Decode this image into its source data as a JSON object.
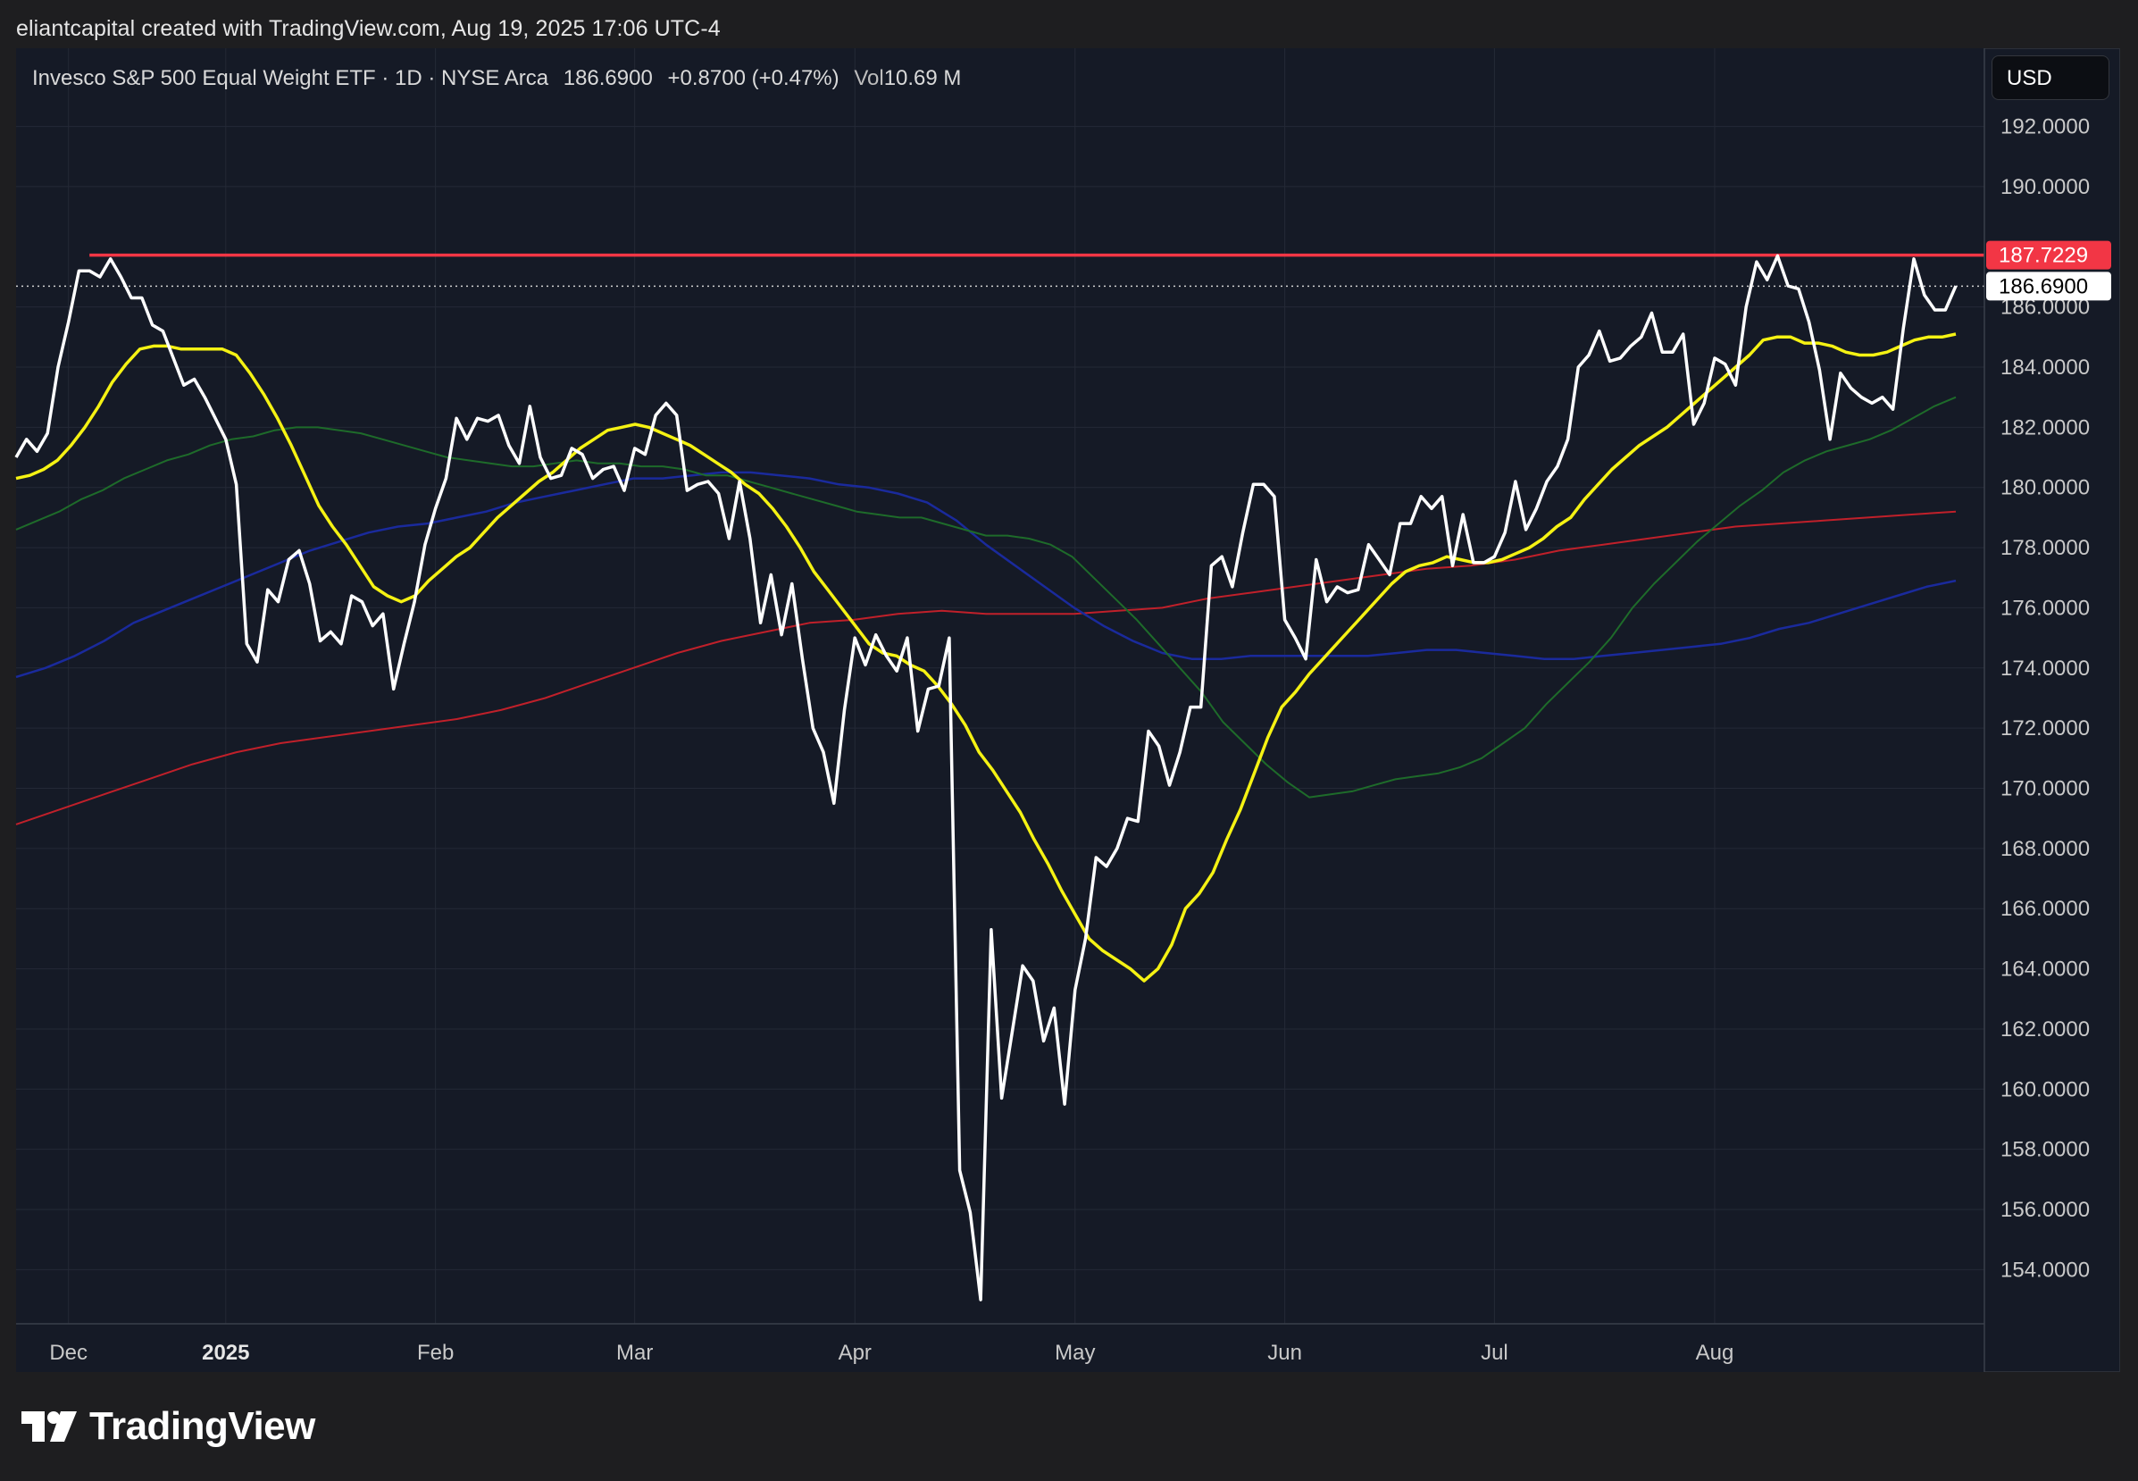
{
  "header": {
    "attribution": "eliantcapital created with TradingView.com, Aug 19, 2025 17:06 UTC-4"
  },
  "legend": {
    "instrument": "Invesco S&P 500 Equal Weight ETF · 1D · NYSE Arca",
    "price": "186.6900",
    "change": "+0.8700 (+0.47%)",
    "volume_label": "Vol",
    "volume_value": "10.69 M"
  },
  "toolbar": {
    "currency": "USD"
  },
  "footer": {
    "brand": "TradingView"
  },
  "colors": {
    "background": "#151a26",
    "price_line": "#ffffff",
    "ma_yellow": "#f5f213",
    "ma_green": "#1e6b2a",
    "ma_blue": "#1a2a9c",
    "ma_red": "#c0202a",
    "resistance": "#f23645",
    "label_last_bg": "#ffffff"
  },
  "chart_data": {
    "type": "line",
    "title": "",
    "ylim": [
      152.2,
      194.6
    ],
    "y_ticks": [
      "192.0000",
      "190.0000",
      "186.0000",
      "184.0000",
      "182.0000",
      "180.0000",
      "178.0000",
      "176.0000",
      "174.0000",
      "172.0000",
      "170.0000",
      "168.0000",
      "166.0000",
      "164.0000",
      "162.0000",
      "160.0000",
      "158.0000",
      "156.0000",
      "154.0000"
    ],
    "x_ticks": [
      {
        "label": "Dec",
        "index": 5,
        "bold": false
      },
      {
        "label": "2025",
        "index": 20,
        "bold": true
      },
      {
        "label": "Feb",
        "index": 40,
        "bold": false
      },
      {
        "label": "Mar",
        "index": 59,
        "bold": false
      },
      {
        "label": "Apr",
        "index": 80,
        "bold": false
      },
      {
        "label": "May",
        "index": 101,
        "bold": false
      },
      {
        "label": "Jun",
        "index": 121,
        "bold": false
      },
      {
        "label": "Jul",
        "index": 141,
        "bold": false
      },
      {
        "label": "Aug",
        "index": 162,
        "bold": false
      }
    ],
    "resistance": {
      "value": 187.7229,
      "label": "187.7229",
      "from_index": 7
    },
    "last_price": {
      "value": 186.69,
      "label": "186.6900"
    },
    "price": [
      181.0,
      181.6,
      181.2,
      181.8,
      184.0,
      185.5,
      187.2,
      187.2,
      187.0,
      187.6,
      187.0,
      186.3,
      186.3,
      185.4,
      185.2,
      184.3,
      183.4,
      183.6,
      183.0,
      182.3,
      181.6,
      180.1,
      174.8,
      174.2,
      176.6,
      176.2,
      177.6,
      177.9,
      176.8,
      174.9,
      175.2,
      174.8,
      176.4,
      176.2,
      175.4,
      175.8,
      173.3,
      174.8,
      176.2,
      178.1,
      179.3,
      180.3,
      182.3,
      181.6,
      182.3,
      182.2,
      182.4,
      181.4,
      180.8,
      182.7,
      181.0,
      180.3,
      180.4,
      181.3,
      181.1,
      180.3,
      180.6,
      180.7,
      179.9,
      181.3,
      181.1,
      182.4,
      182.8,
      182.4,
      179.9,
      180.1,
      180.2,
      179.8,
      178.3,
      180.2,
      178.3,
      175.5,
      177.1,
      175.1,
      176.8,
      174.3,
      172.0,
      171.2,
      169.5,
      172.6,
      175.0,
      174.1,
      175.1,
      174.4,
      173.9,
      175.0,
      171.9,
      173.3,
      173.4,
      175.0,
      157.3,
      155.9,
      153.0,
      165.3,
      159.7,
      161.9,
      164.1,
      163.6,
      161.6,
      162.7,
      159.5,
      163.3,
      165.0,
      167.7,
      167.4,
      168.0,
      169.0,
      168.9,
      171.9,
      171.4,
      170.1,
      171.2,
      172.7,
      172.7,
      177.4,
      177.7,
      176.7,
      178.5,
      180.1,
      180.1,
      179.7,
      175.6,
      175.0,
      174.3,
      177.6,
      176.2,
      176.7,
      176.5,
      176.6,
      178.1,
      177.6,
      177.1,
      178.8,
      178.8,
      179.7,
      179.3,
      179.7,
      177.4,
      179.1,
      177.5,
      177.5,
      177.7,
      178.5,
      180.2,
      178.6,
      179.3,
      180.2,
      180.7,
      181.6,
      184.0,
      184.4,
      185.2,
      184.2,
      184.3,
      184.7,
      185.0,
      185.8,
      184.5,
      184.5,
      185.1,
      182.1,
      182.8,
      184.3,
      184.1,
      183.4,
      186.0,
      187.5,
      186.9,
      187.7,
      186.7,
      186.6,
      185.5,
      183.9,
      181.6,
      183.8,
      183.3,
      183.0,
      182.8,
      183.0,
      182.6,
      185.3,
      187.6,
      186.4,
      185.9,
      185.9,
      186.7
    ],
    "series": [
      {
        "period_hint": "yellow",
        "values": [
          180.3,
          180.4,
          180.6,
          180.9,
          181.4,
          182.0,
          182.7,
          183.5,
          184.1,
          184.6,
          184.7,
          184.7,
          184.6,
          184.6,
          184.6,
          184.6,
          184.4,
          183.8,
          183.1,
          182.3,
          181.4,
          180.4,
          179.4,
          178.7,
          178.1,
          177.4,
          176.7,
          176.4,
          176.2,
          176.4,
          176.9,
          177.3,
          177.7,
          178.0,
          178.5,
          179.0,
          179.4,
          179.8,
          180.2,
          180.5,
          180.9,
          181.3,
          181.6,
          181.9,
          182.0,
          182.1,
          182.0,
          181.8,
          181.6,
          181.4,
          181.1,
          180.8,
          180.5,
          180.1,
          179.8,
          179.3,
          178.7,
          178.0,
          177.2,
          176.6,
          176.0,
          175.4,
          174.8,
          174.5,
          174.4,
          174.1,
          173.9,
          173.4,
          172.8,
          172.1,
          171.2,
          170.6,
          169.9,
          169.2,
          168.3,
          167.5,
          166.6,
          165.8,
          165.0,
          164.6,
          164.3,
          164.0,
          163.6,
          164.0,
          164.8,
          166.0,
          166.5,
          167.2,
          168.3,
          169.3,
          170.5,
          171.7,
          172.7,
          173.2,
          173.8,
          174.3,
          174.8,
          175.3,
          175.8,
          176.3,
          176.8,
          177.2,
          177.4,
          177.5,
          177.7,
          177.6,
          177.5,
          177.5,
          177.6,
          177.8,
          178.0,
          178.3,
          178.7,
          179.0,
          179.6,
          180.1,
          180.6,
          181.0,
          181.4,
          181.7,
          182.0,
          182.4,
          182.8,
          183.2,
          183.6,
          184.0,
          184.4,
          184.9,
          185.0,
          185.0,
          184.8,
          184.8,
          184.7,
          184.5,
          184.4,
          184.4,
          184.5,
          184.7,
          184.9,
          185.0,
          185.0,
          185.1
        ]
      },
      {
        "period_hint": "green",
        "values": [
          178.6,
          178.9,
          179.2,
          179.6,
          179.9,
          180.3,
          180.6,
          180.9,
          181.1,
          181.4,
          181.6,
          181.7,
          181.9,
          182.0,
          182.0,
          181.9,
          181.8,
          181.6,
          181.4,
          181.2,
          181.0,
          180.9,
          180.8,
          180.7,
          180.7,
          180.8,
          180.9,
          180.8,
          180.8,
          180.7,
          180.7,
          180.6,
          180.4,
          180.4,
          180.2,
          180.0,
          179.8,
          179.6,
          179.4,
          179.2,
          179.1,
          179.0,
          179.0,
          178.8,
          178.6,
          178.4,
          178.4,
          178.3,
          178.1,
          177.7,
          177.0,
          176.3,
          175.6,
          174.8,
          174.0,
          173.2,
          172.2,
          171.5,
          170.8,
          170.2,
          169.7,
          169.8,
          169.9,
          170.1,
          170.3,
          170.4,
          170.5,
          170.7,
          171.0,
          171.5,
          172.0,
          172.8,
          173.5,
          174.2,
          175.0,
          176.0,
          176.8,
          177.5,
          178.2,
          178.8,
          179.4,
          179.9,
          180.5,
          180.9,
          181.2,
          181.4,
          181.6,
          181.9,
          182.3,
          182.7,
          183.0
        ]
      },
      {
        "period_hint": "blue",
        "values": [
          173.7,
          174.0,
          174.4,
          174.9,
          175.5,
          175.9,
          176.3,
          176.7,
          177.1,
          177.5,
          177.9,
          178.2,
          178.5,
          178.7,
          178.8,
          179.0,
          179.2,
          179.5,
          179.7,
          179.9,
          180.1,
          180.3,
          180.3,
          180.4,
          180.5,
          180.5,
          180.4,
          180.3,
          180.1,
          180.0,
          179.8,
          179.5,
          178.9,
          178.1,
          177.4,
          176.7,
          176.0,
          175.4,
          174.9,
          174.5,
          174.3,
          174.3,
          174.4,
          174.4,
          174.4,
          174.4,
          174.4,
          174.5,
          174.6,
          174.6,
          174.5,
          174.4,
          174.3,
          174.3,
          174.4,
          174.5,
          174.6,
          174.7,
          174.8,
          175.0,
          175.3,
          175.5,
          175.8,
          176.1,
          176.4,
          176.7,
          176.9
        ]
      },
      {
        "period_hint": "red",
        "values": [
          168.8,
          169.3,
          169.8,
          170.3,
          170.8,
          171.2,
          171.5,
          171.7,
          171.9,
          172.1,
          172.3,
          172.6,
          173.0,
          173.5,
          174.0,
          174.5,
          174.9,
          175.2,
          175.5,
          175.6,
          175.8,
          175.9,
          175.8,
          175.8,
          175.8,
          175.9,
          176.0,
          176.3,
          176.5,
          176.7,
          176.9,
          177.1,
          177.3,
          177.4,
          177.6,
          177.9,
          178.1,
          178.3,
          178.5,
          178.7,
          178.8,
          178.9,
          179.0,
          179.1,
          179.2
        ]
      }
    ]
  }
}
